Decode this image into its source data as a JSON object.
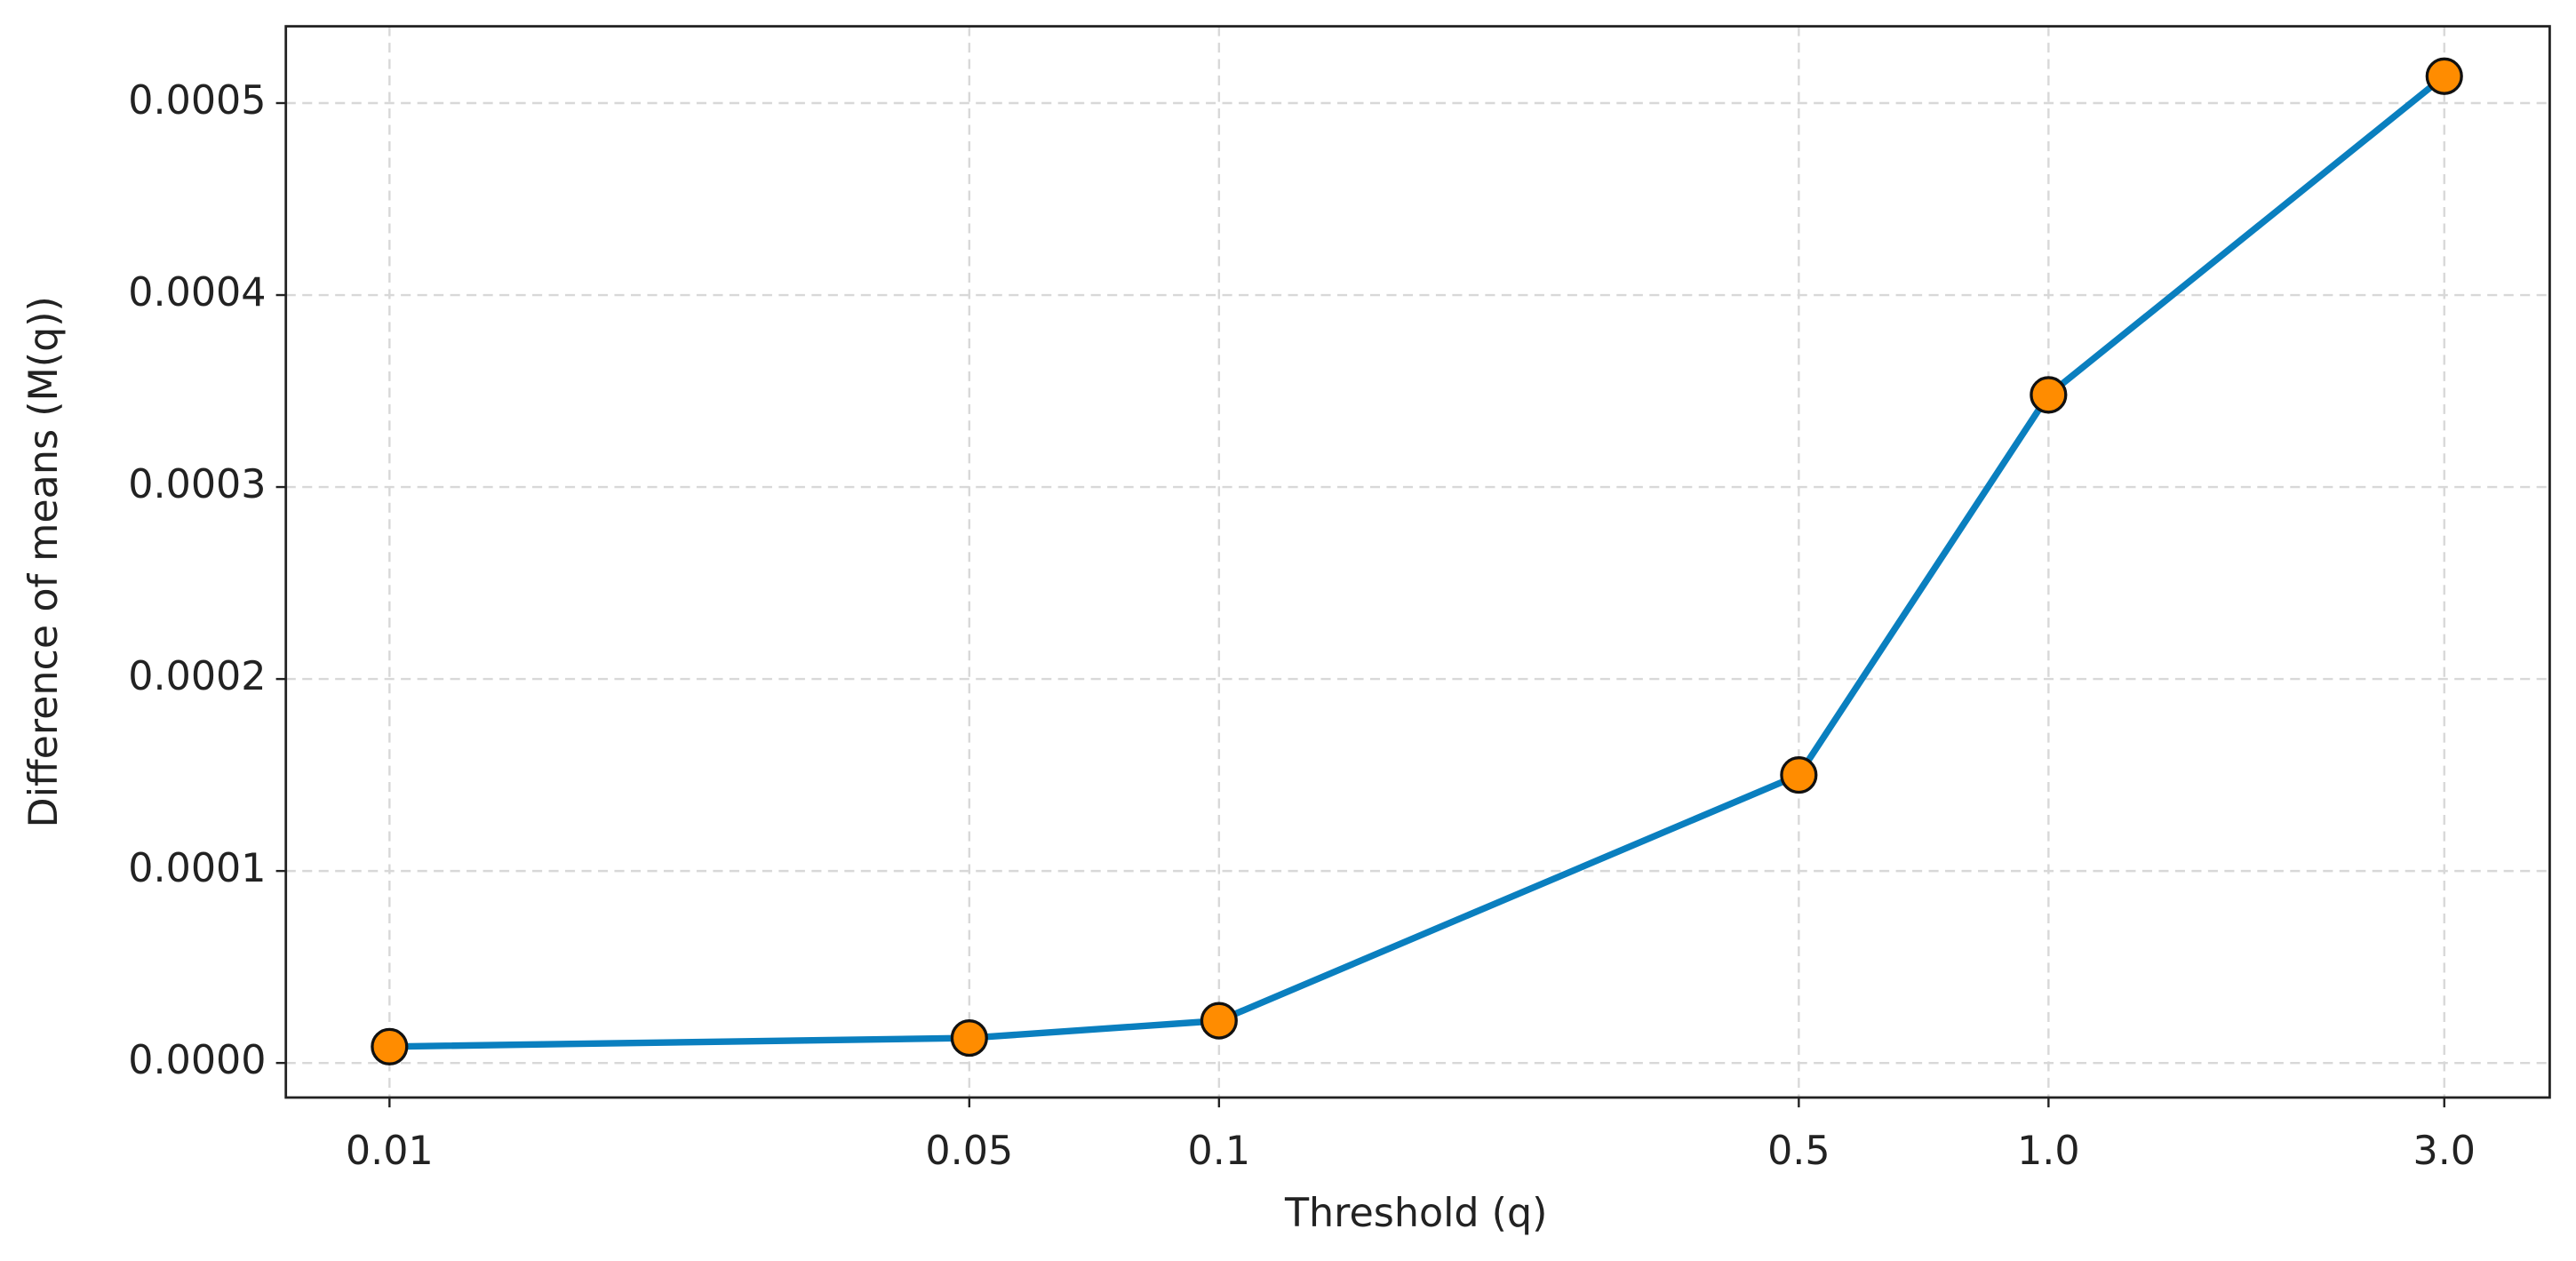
{
  "chart_data": {
    "type": "line",
    "x_label": "Threshold (q)",
    "y_label": "Difference of means (M(q))",
    "x": [
      0.01,
      0.05,
      0.1,
      0.5,
      1.0,
      3.0
    ],
    "values": [
      8.5e-06,
      1.3e-05,
      2.2e-05,
      0.00015,
      0.000348,
      0.000514
    ],
    "color": "#0a7fbf",
    "marker_color": "#ff8c00",
    "marker_edge_color": "#111111",
    "x_scale": "log",
    "xlim": [
      0.0075,
      4.02
    ],
    "ylim": [
      -1.8e-05,
      0.00054
    ],
    "xticks": [
      0.01,
      0.05,
      0.1,
      0.5,
      {
        "value": 1,
        "label": "1.0"
      },
      {
        "value": 3,
        "label": "3.0"
      }
    ],
    "yticks": [
      {
        "value": 0,
        "label": "0.0000"
      },
      0.0001,
      0.0002,
      0.0003,
      0.0004,
      0.0005
    ],
    "grid": true
  }
}
